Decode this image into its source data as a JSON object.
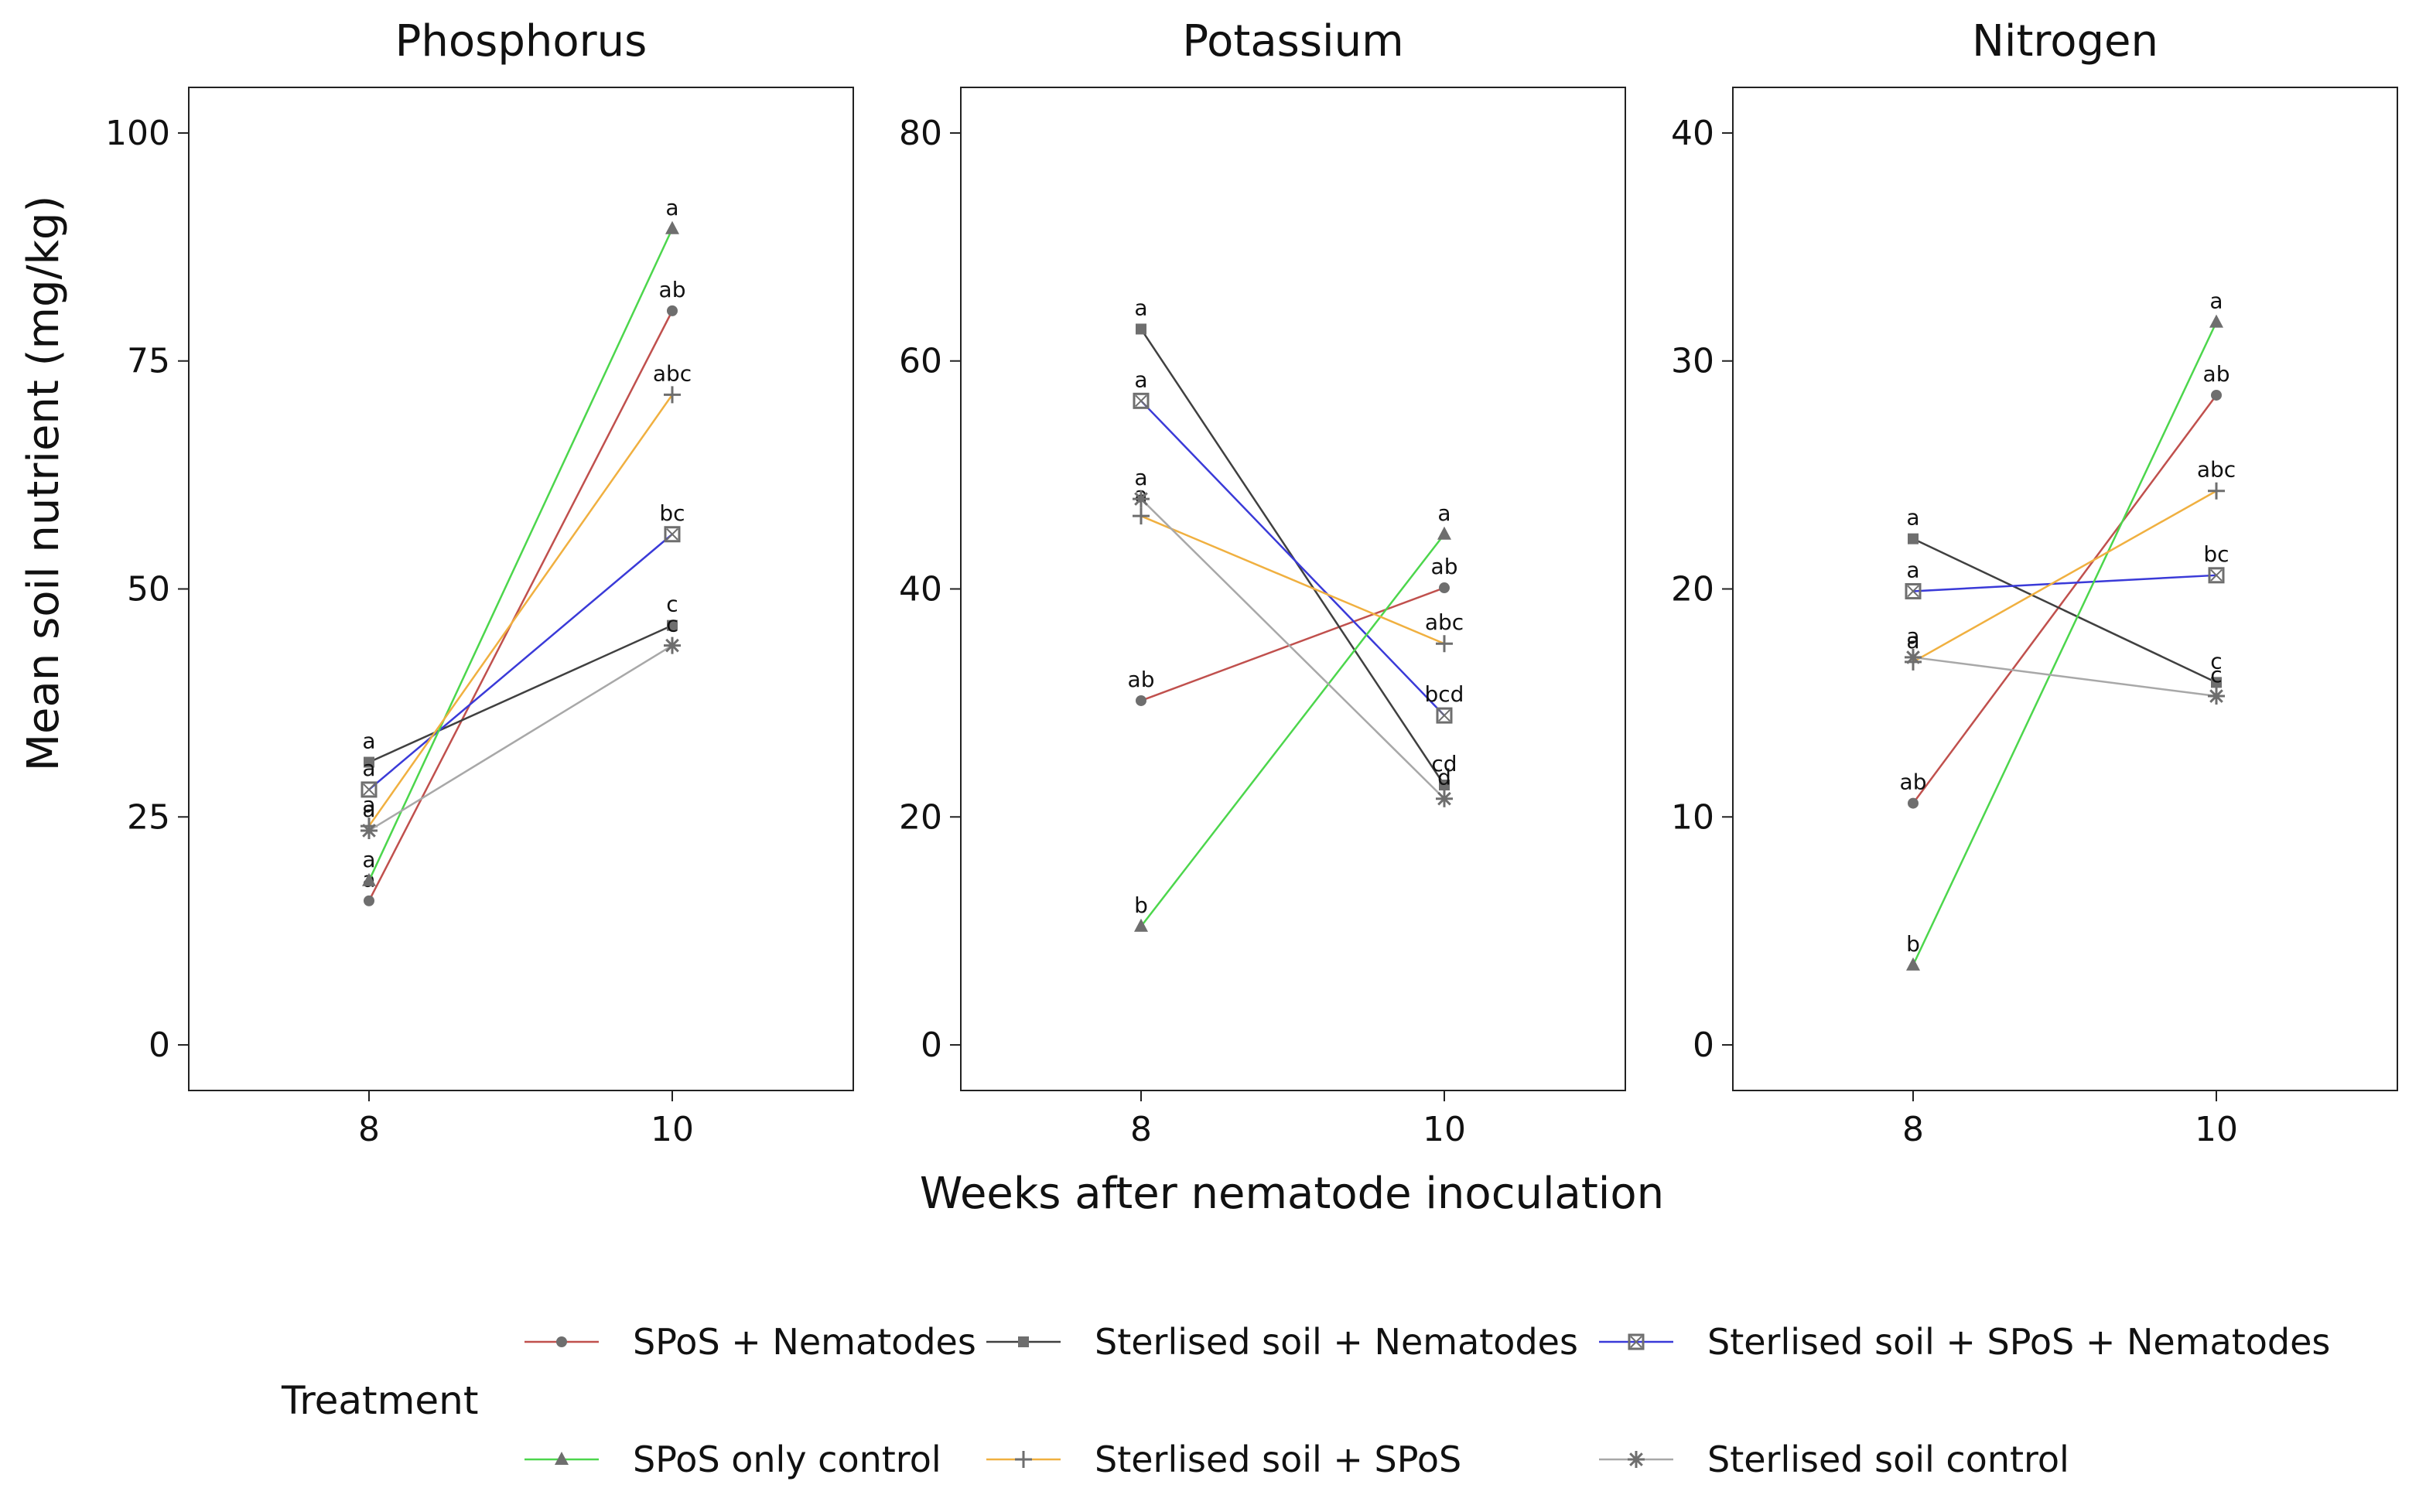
{
  "figure": {
    "ylabel": "Mean soil nutrient (mg/kg)",
    "xlabel": "Weeks after nematode inoculation"
  },
  "legend": {
    "title": "Treatment",
    "position": "bottom",
    "items": [
      {
        "key": "spos_nem",
        "label": "SPoS + Nematodes",
        "color": "#c0504d",
        "marker": "circle"
      },
      {
        "key": "ster_nem",
        "label": "Sterlised soil + Nematodes",
        "color": "#404040",
        "marker": "square"
      },
      {
        "key": "ster_spos_nem",
        "label": "Sterlised soil + SPoS + Nematodes",
        "color": "#3a3ad8",
        "marker": "boxx"
      },
      {
        "key": "spos_only",
        "label": "SPoS only control",
        "color": "#4cd64c",
        "marker": "triangle"
      },
      {
        "key": "ster_spos",
        "label": "Sterlised soil + SPoS",
        "color": "#f0b040",
        "marker": "plus"
      },
      {
        "key": "ster_ctrl",
        "label": "Sterlised soil control",
        "color": "#a8a8a8",
        "marker": "asterisk"
      }
    ]
  },
  "chart_data": [
    {
      "type": "line",
      "title": "Phosphorus",
      "x": [
        8,
        10
      ],
      "xticks": [
        "8",
        "10"
      ],
      "ylim": [
        -5,
        105
      ],
      "yticks": [
        0,
        25,
        50,
        75,
        100
      ],
      "grid": false,
      "series": [
        {
          "name": "SPoS + Nematodes",
          "values": [
            15.8,
            80.5
          ],
          "labels": [
            "a",
            "ab"
          ]
        },
        {
          "name": "Sterlised soil + Nematodes",
          "values": [
            31.0,
            46.0
          ],
          "labels": [
            "a",
            "c"
          ]
        },
        {
          "name": "Sterlised soil + SPoS + Nematodes",
          "values": [
            28.0,
            56.0
          ],
          "labels": [
            "a",
            "bc"
          ]
        },
        {
          "name": "SPoS only control",
          "values": [
            18.0,
            89.5
          ],
          "labels": [
            "a",
            "a"
          ]
        },
        {
          "name": "Sterlised soil + SPoS",
          "values": [
            24.0,
            71.3
          ],
          "labels": [
            "a",
            "abc"
          ]
        },
        {
          "name": "Sterlised soil control",
          "values": [
            23.5,
            43.8
          ],
          "labels": [
            "a",
            "c"
          ]
        }
      ]
    },
    {
      "type": "line",
      "title": "Potassium",
      "x": [
        8,
        10
      ],
      "xticks": [
        "8",
        "10"
      ],
      "ylim": [
        -4,
        84
      ],
      "yticks": [
        0,
        20,
        40,
        60,
        80
      ],
      "grid": false,
      "series": [
        {
          "name": "SPoS + Nematodes",
          "values": [
            30.2,
            40.1
          ],
          "labels": [
            "ab",
            "ab"
          ]
        },
        {
          "name": "Sterlised soil + Nematodes",
          "values": [
            62.8,
            22.8
          ],
          "labels": [
            "a",
            "cd"
          ]
        },
        {
          "name": "Sterlised soil + SPoS + Nematodes",
          "values": [
            56.5,
            28.9
          ],
          "labels": [
            "a",
            "bcd"
          ]
        },
        {
          "name": "SPoS only control",
          "values": [
            10.4,
            44.8
          ],
          "labels": [
            "b",
            "a"
          ]
        },
        {
          "name": "Sterlised soil + SPoS",
          "values": [
            46.4,
            35.2
          ],
          "labels": [
            "a",
            "abc"
          ]
        },
        {
          "name": "Sterlised soil control",
          "values": [
            47.9,
            21.6
          ],
          "labels": [
            "a",
            "d"
          ]
        }
      ]
    },
    {
      "type": "line",
      "title": "Nitrogen",
      "x": [
        8,
        10
      ],
      "xticks": [
        "8",
        "10"
      ],
      "ylim": [
        -2,
        42
      ],
      "yticks": [
        0,
        10,
        20,
        30,
        40
      ],
      "grid": false,
      "series": [
        {
          "name": "SPoS + Nematodes",
          "values": [
            10.6,
            28.5
          ],
          "labels": [
            "ab",
            "ab"
          ]
        },
        {
          "name": "Sterlised soil + Nematodes",
          "values": [
            22.2,
            15.9
          ],
          "labels": [
            "a",
            "c"
          ]
        },
        {
          "name": "Sterlised soil + SPoS + Nematodes",
          "values": [
            19.9,
            20.6
          ],
          "labels": [
            "a",
            "bc"
          ]
        },
        {
          "name": "SPoS only control",
          "values": [
            3.5,
            31.7
          ],
          "labels": [
            "b",
            "a"
          ]
        },
        {
          "name": "Sterlised soil + SPoS",
          "values": [
            16.8,
            24.3
          ],
          "labels": [
            "a",
            "abc"
          ]
        },
        {
          "name": "Sterlised soil control",
          "values": [
            17.0,
            15.3
          ],
          "labels": [
            "a",
            "c"
          ]
        }
      ]
    }
  ]
}
